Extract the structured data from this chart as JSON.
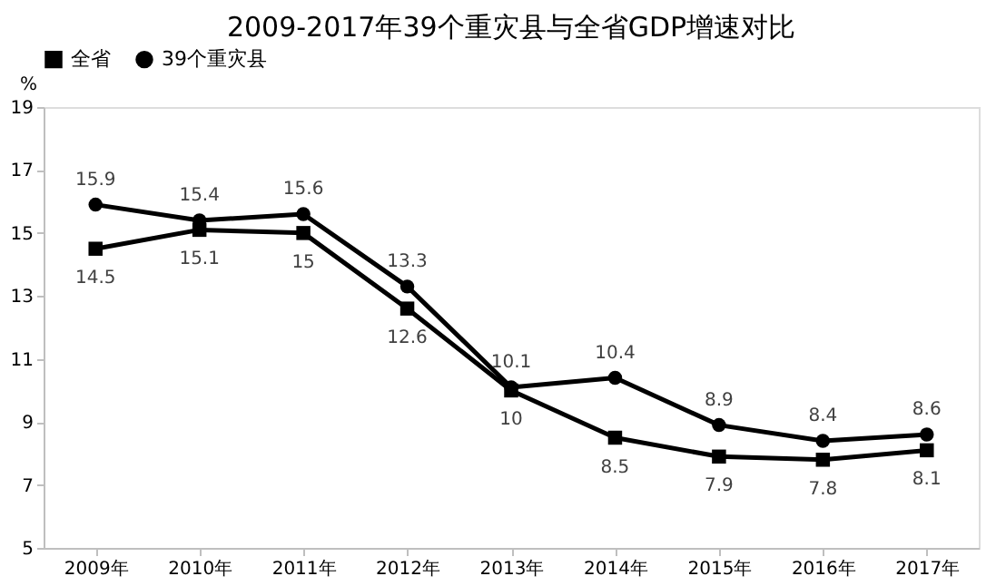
{
  "chart_data": {
    "type": "line",
    "title": "2009-2017年39个重灾县与全省GDP增速对比",
    "ylabel": "%",
    "categories": [
      "2009年",
      "2010年",
      "2011年",
      "2012年",
      "2013年",
      "2014年",
      "2015年",
      "2016年",
      "2017年"
    ],
    "series": [
      {
        "name": "全省",
        "color": "#000000",
        "marker": "square",
        "values": [
          14.5,
          15.1,
          15,
          12.6,
          10,
          8.5,
          7.9,
          7.8,
          8.1
        ]
      },
      {
        "name": "39个重灾县",
        "color": "#000000",
        "marker": "circle",
        "values": [
          15.9,
          15.4,
          15.6,
          13.3,
          10.1,
          10.4,
          8.9,
          8.4,
          8.6
        ]
      }
    ],
    "ylim": [
      5,
      19
    ],
    "yticks": [
      5,
      7,
      9,
      11,
      13,
      15,
      17,
      19
    ],
    "grid": false,
    "legend": "top",
    "data_labels": true
  }
}
